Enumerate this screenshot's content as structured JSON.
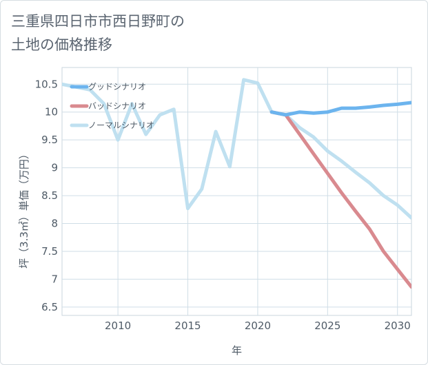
{
  "header": {
    "title": "三重県四日市市西日野町の\n土地の価格推移"
  },
  "chart_data": {
    "type": "line",
    "xlabel": "年",
    "ylabel": "坪（3.3㎡）単価（万円）",
    "xlim": [
      2006,
      2031
    ],
    "ylim": [
      6.35,
      10.8
    ],
    "x_ticks": [
      2010,
      2015,
      2020,
      2025,
      2030
    ],
    "y_ticks": [
      6.5,
      7,
      7.5,
      8,
      8.5,
      9,
      9.5,
      10,
      10.5
    ],
    "x_tick_labels": [
      "2010",
      "2015",
      "2020",
      "2025",
      "2030"
    ],
    "y_tick_labels": [
      "6.5",
      "7",
      "7.5",
      "8",
      "8.5",
      "9",
      "9.5",
      "10",
      "10.5"
    ],
    "grid": true,
    "legend_position": "top-left",
    "series": [
      {
        "name": "グッドシナリオ",
        "color": "#6cb4ee",
        "x": [
          2021,
          2022,
          2023,
          2024,
          2025,
          2026,
          2027,
          2028,
          2029,
          2030,
          2031
        ],
        "y": [
          10.0,
          9.95,
          10.0,
          9.98,
          10.0,
          10.07,
          10.07,
          10.09,
          10.12,
          10.14,
          10.17
        ]
      },
      {
        "name": "バッドシナリオ",
        "color": "#d98a8f",
        "x": [
          2021,
          2022,
          2023,
          2024,
          2025,
          2026,
          2027,
          2028,
          2029,
          2030,
          2031
        ],
        "y": [
          10.0,
          9.95,
          9.6,
          9.25,
          8.9,
          8.55,
          8.22,
          7.9,
          7.5,
          7.18,
          6.86
        ]
      },
      {
        "name": "ノーマルシナリオ",
        "color": "#bfe0f0",
        "x": [
          2006,
          2007,
          2008,
          2009,
          2010,
          2011,
          2012,
          2013,
          2014,
          2015,
          2016,
          2017,
          2018,
          2019,
          2020,
          2021,
          2022,
          2023,
          2024,
          2025,
          2026,
          2027,
          2028,
          2029,
          2030,
          2031
        ],
        "y": [
          10.5,
          10.45,
          10.4,
          10.15,
          9.5,
          10.15,
          9.6,
          9.95,
          10.05,
          8.27,
          8.62,
          9.65,
          9.02,
          10.58,
          10.52,
          10.0,
          9.95,
          9.72,
          9.55,
          9.3,
          9.12,
          8.92,
          8.73,
          8.5,
          8.33,
          8.1
        ]
      }
    ]
  }
}
